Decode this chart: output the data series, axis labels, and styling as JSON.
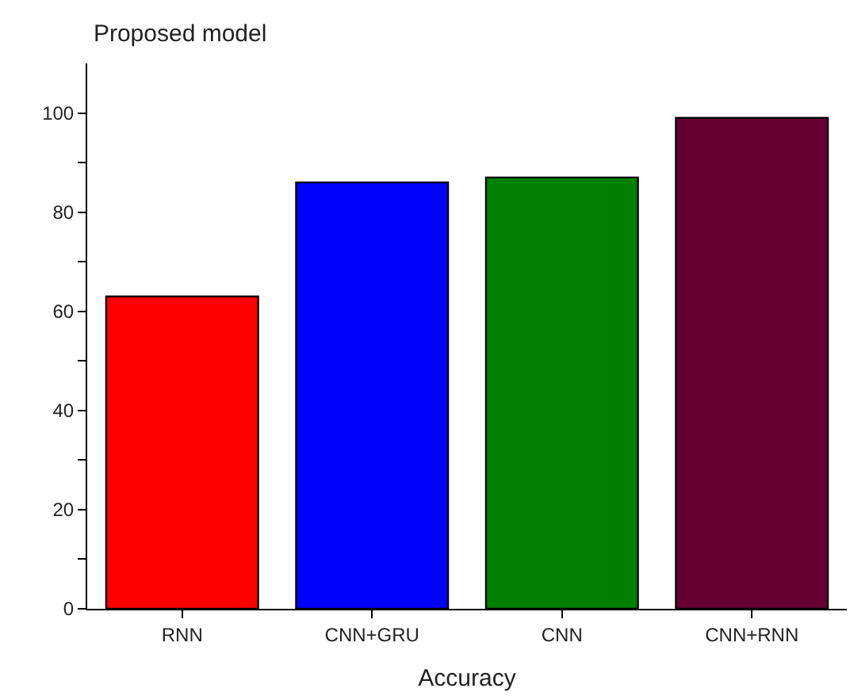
{
  "chart_data": {
    "type": "bar",
    "title": "Proposed model",
    "xlabel": "Accuracy",
    "categories": [
      "RNN",
      "CNN+GRU",
      "CNN",
      "CNN+RNN"
    ],
    "values": [
      63,
      86,
      87,
      99
    ],
    "colors": [
      "#ff0000",
      "#0000ff",
      "#007f00",
      "#660033"
    ],
    "ylim": [
      0,
      110
    ],
    "yticks": [
      0,
      {
        "value": 10,
        "label": null
      },
      20,
      {
        "value": 30,
        "label": null
      },
      40,
      {
        "value": 50,
        "label": null
      },
      60,
      {
        "value": 70,
        "label": null
      },
      80,
      {
        "value": 90,
        "label": null
      },
      100
    ],
    "tick_labels": "xy"
  }
}
